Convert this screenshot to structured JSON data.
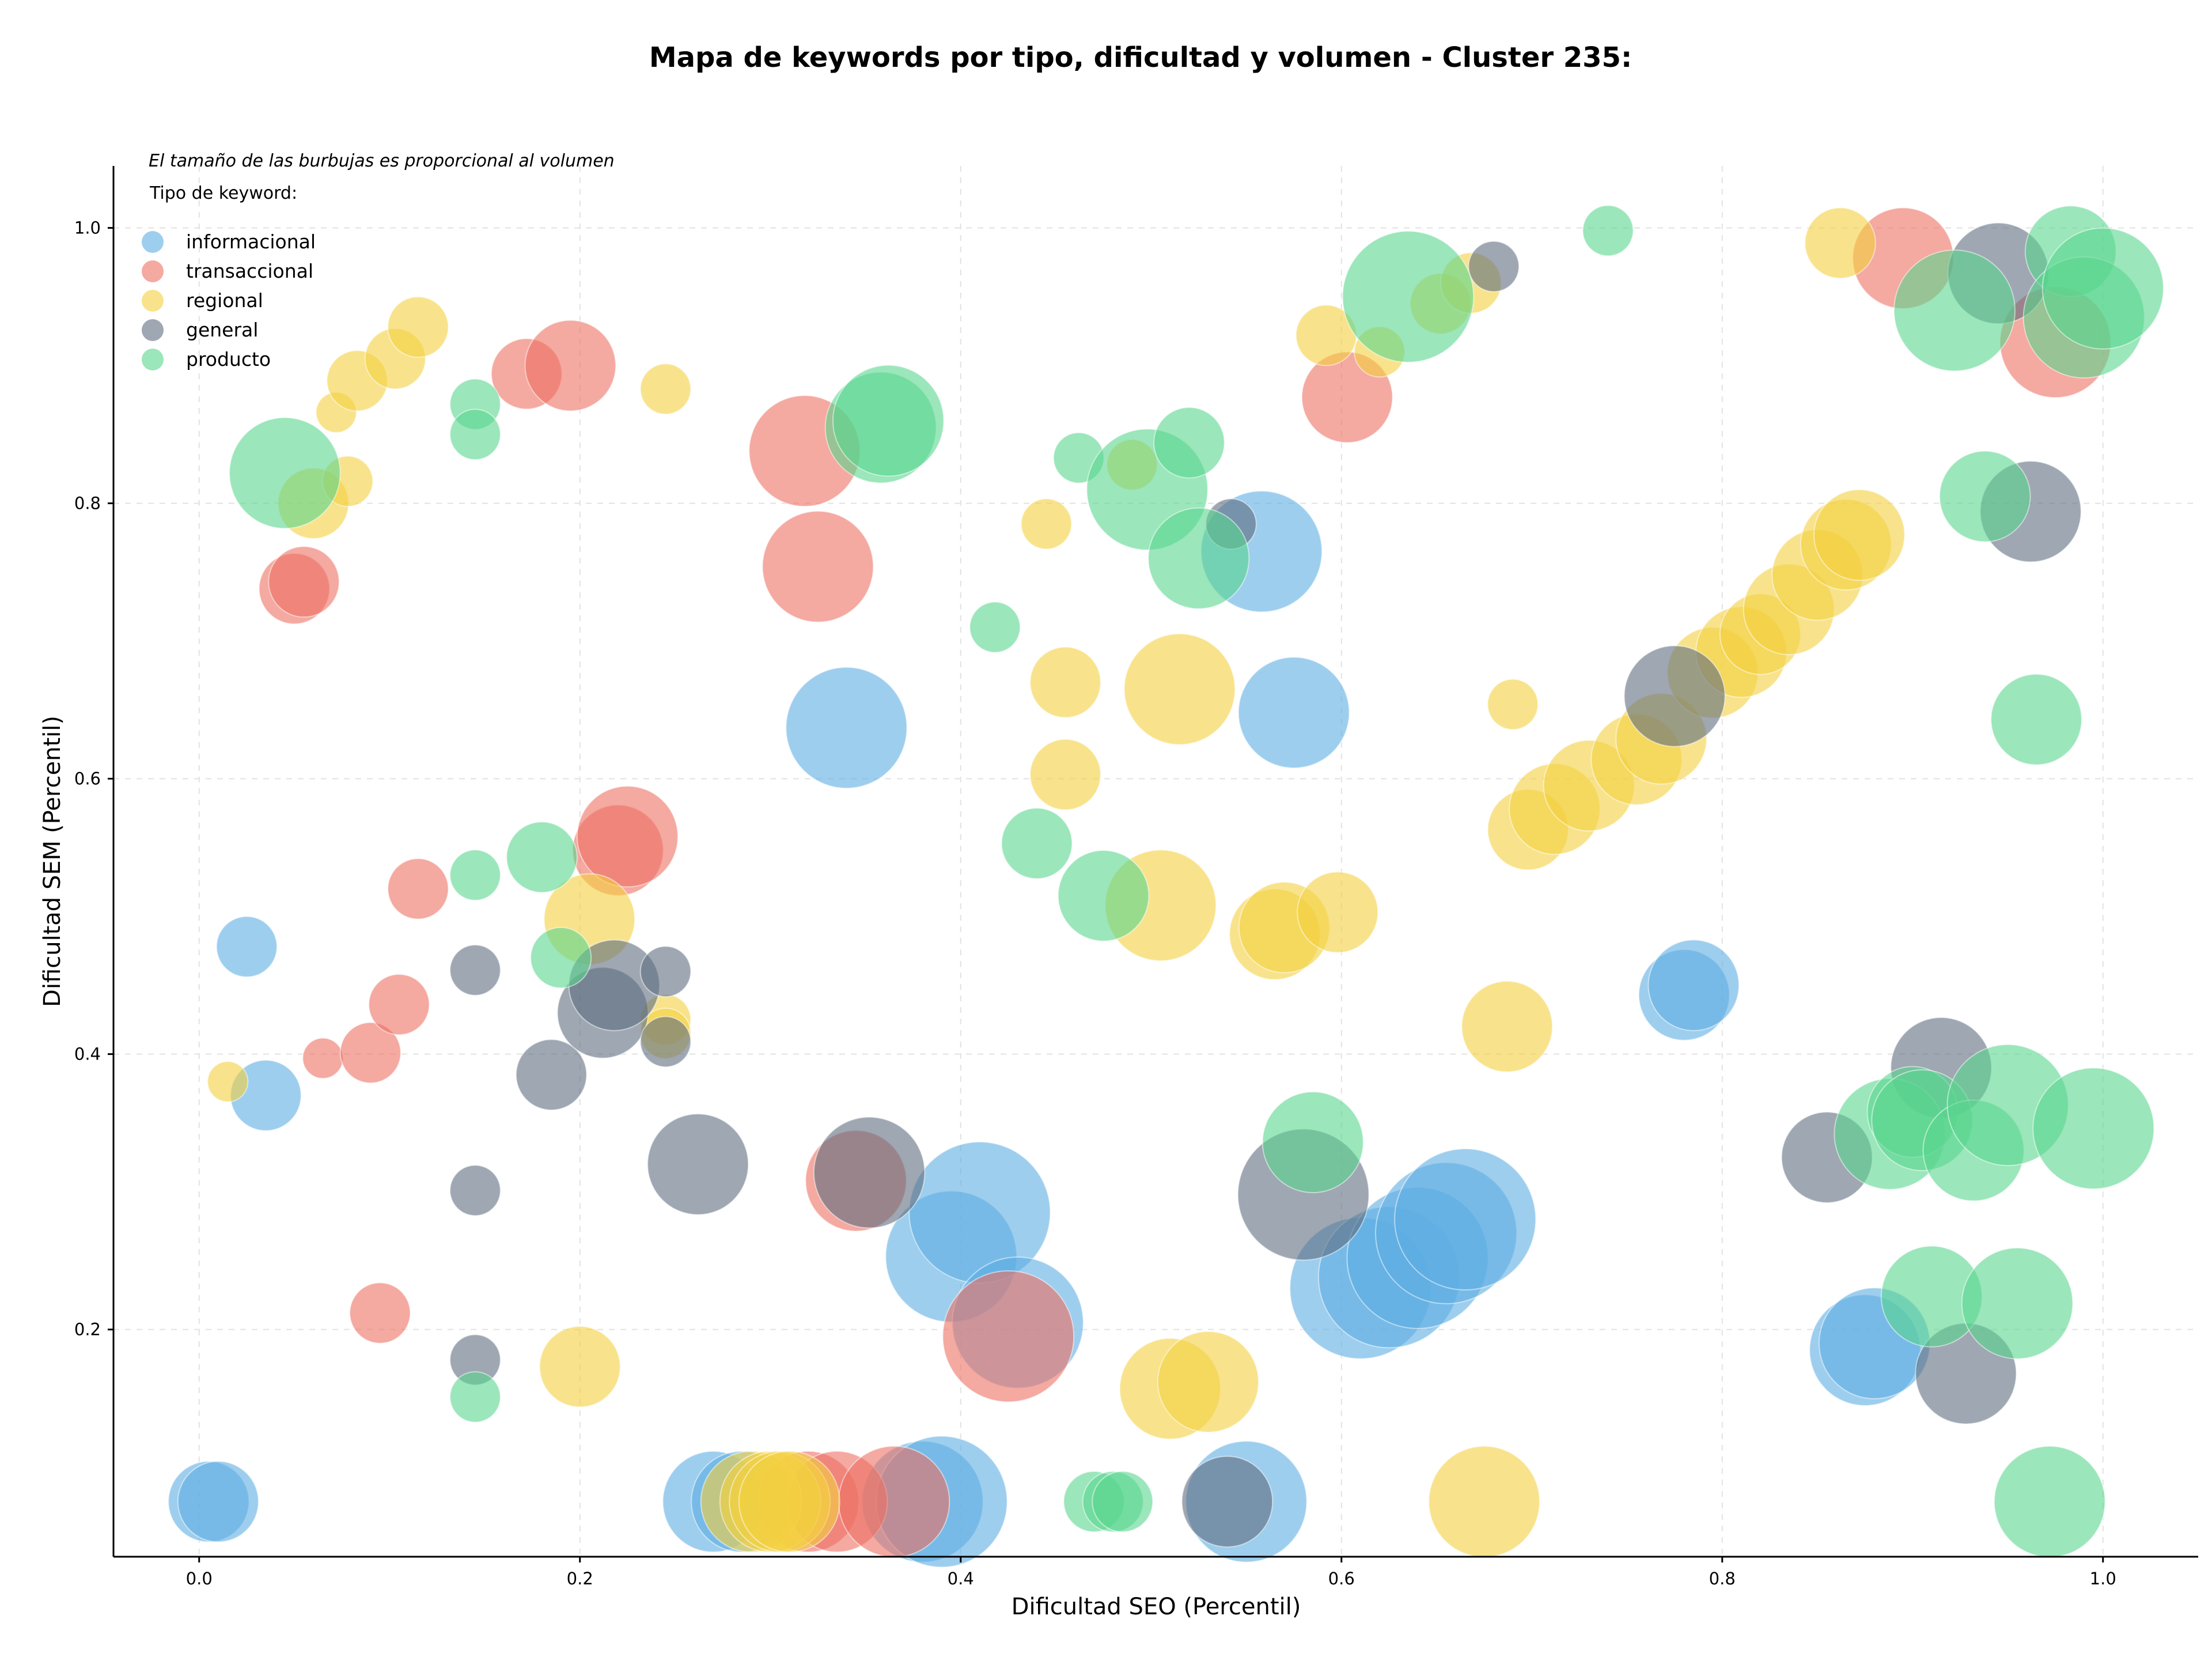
{
  "chart_data": {
    "type": "scatter",
    "title": "Mapa de keywords por tipo, dificultad y volumen - Cluster 235:",
    "xlabel": "Dificultad SEO (Percentil)",
    "ylabel": "Dificultad SEM (Percentil)",
    "xlim": [
      -0.045,
      1.05
    ],
    "ylim": [
      0.035,
      1.045
    ],
    "xticks": [
      0.0,
      0.2,
      0.4,
      0.6,
      0.8,
      1.0
    ],
    "xtick_labels": [
      "0.0",
      "0.2",
      "0.4",
      "0.6",
      "0.8",
      "1.0"
    ],
    "yticks": [
      0.2,
      0.4,
      0.6,
      0.8,
      1.0
    ],
    "ytick_labels": [
      "0.2",
      "0.4",
      "0.6",
      "0.8",
      "1.0"
    ],
    "grid": true,
    "annotation": "El tamaño de las burbujas es proporcional al volumen",
    "legend": {
      "title": "Tipo de keyword:",
      "placement": "top-left"
    },
    "series": [
      {
        "name": "informacional",
        "color": "#5DADE2",
        "points": [
          [
            0.005,
            0.075,
            4
          ],
          [
            0.01,
            0.075,
            4
          ],
          [
            0.025,
            0.478,
            3
          ],
          [
            0.035,
            0.37,
            3.5
          ],
          [
            0.34,
            0.637,
            6
          ],
          [
            0.558,
            0.765,
            6
          ],
          [
            0.575,
            0.648,
            5.5
          ],
          [
            0.27,
            0.075,
            5
          ],
          [
            0.285,
            0.075,
            5
          ],
          [
            0.38,
            0.075,
            6
          ],
          [
            0.39,
            0.075,
            6.5
          ],
          [
            0.395,
            0.253,
            6.5
          ],
          [
            0.41,
            0.285,
            7
          ],
          [
            0.43,
            0.205,
            6.5
          ],
          [
            0.55,
            0.075,
            6
          ],
          [
            0.61,
            0.23,
            7
          ],
          [
            0.625,
            0.238,
            7
          ],
          [
            0.64,
            0.252,
            7
          ],
          [
            0.655,
            0.27,
            7
          ],
          [
            0.665,
            0.28,
            7
          ],
          [
            0.78,
            0.443,
            4.5
          ],
          [
            0.785,
            0.45,
            4.5
          ],
          [
            0.875,
            0.185,
            5.5
          ],
          [
            0.88,
            0.19,
            5.5
          ]
        ]
      },
      {
        "name": "transaccional",
        "color": "#EC7063",
        "points": [
          [
            0.05,
            0.738,
            3.5
          ],
          [
            0.055,
            0.743,
            3.5
          ],
          [
            0.065,
            0.397,
            2
          ],
          [
            0.09,
            0.401,
            3
          ],
          [
            0.095,
            0.212,
            3
          ],
          [
            0.105,
            0.436,
            3
          ],
          [
            0.115,
            0.52,
            3
          ],
          [
            0.172,
            0.894,
            3.5
          ],
          [
            0.195,
            0.9,
            4.5
          ],
          [
            0.22,
            0.548,
            4.5
          ],
          [
            0.225,
            0.558,
            5
          ],
          [
            0.318,
            0.838,
            5.5
          ],
          [
            0.325,
            0.754,
            5.5
          ],
          [
            0.32,
            0.075,
            5
          ],
          [
            0.335,
            0.075,
            5
          ],
          [
            0.345,
            0.308,
            5
          ],
          [
            0.365,
            0.075,
            5.5
          ],
          [
            0.425,
            0.195,
            6.5
          ],
          [
            0.603,
            0.877,
            4.5
          ],
          [
            0.895,
            0.978,
            5
          ],
          [
            0.975,
            0.917,
            5.5
          ]
        ]
      },
      {
        "name": "regional",
        "color": "#F4D03F",
        "points": [
          [
            0.015,
            0.38,
            2
          ],
          [
            0.06,
            0.8,
            3.5
          ],
          [
            0.072,
            0.866,
            2
          ],
          [
            0.078,
            0.816,
            2.5
          ],
          [
            0.083,
            0.889,
            3
          ],
          [
            0.103,
            0.905,
            3
          ],
          [
            0.115,
            0.928,
            3
          ],
          [
            0.2,
            0.173,
            4
          ],
          [
            0.205,
            0.498,
            4.5
          ],
          [
            0.245,
            0.883,
            2.5
          ],
          [
            0.245,
            0.425,
            2.5
          ],
          [
            0.245,
            0.415,
            2.5
          ],
          [
            0.29,
            0.075,
            5
          ],
          [
            0.3,
            0.075,
            5
          ],
          [
            0.305,
            0.075,
            5
          ],
          [
            0.31,
            0.075,
            5
          ],
          [
            0.445,
            0.785,
            2.5
          ],
          [
            0.455,
            0.67,
            3.5
          ],
          [
            0.455,
            0.603,
            3.5
          ],
          [
            0.49,
            0.828,
            2.5
          ],
          [
            0.505,
            0.508,
            5.5
          ],
          [
            0.51,
            0.157,
            5
          ],
          [
            0.515,
            0.665,
            5.5
          ],
          [
            0.53,
            0.162,
            5
          ],
          [
            0.565,
            0.487,
            4.5
          ],
          [
            0.57,
            0.492,
            4.5
          ],
          [
            0.598,
            0.503,
            4
          ],
          [
            0.592,
            0.922,
            3
          ],
          [
            0.62,
            0.91,
            2.5
          ],
          [
            0.652,
            0.945,
            3
          ],
          [
            0.668,
            0.96,
            3
          ],
          [
            0.675,
            0.075,
            5.5
          ],
          [
            0.687,
            0.42,
            4.5
          ],
          [
            0.69,
            0.654,
            2.5
          ],
          [
            0.698,
            0.563,
            4
          ],
          [
            0.712,
            0.578,
            4.5
          ],
          [
            0.73,
            0.595,
            4.5
          ],
          [
            0.755,
            0.614,
            4.5
          ],
          [
            0.768,
            0.629,
            4.5
          ],
          [
            0.795,
            0.677,
            4.5
          ],
          [
            0.81,
            0.692,
            4.5
          ],
          [
            0.82,
            0.705,
            4
          ],
          [
            0.835,
            0.723,
            4.5
          ],
          [
            0.85,
            0.748,
            4.5
          ],
          [
            0.862,
            0.989,
            3.5
          ],
          [
            0.865,
            0.77,
            4.5
          ],
          [
            0.872,
            0.777,
            4.5
          ]
        ]
      },
      {
        "name": "general",
        "color": "#5D6D7E",
        "points": [
          [
            0.145,
            0.461,
            2.5
          ],
          [
            0.145,
            0.301,
            2.5
          ],
          [
            0.145,
            0.178,
            2.5
          ],
          [
            0.185,
            0.385,
            3.5
          ],
          [
            0.212,
            0.43,
            4.5
          ],
          [
            0.218,
            0.45,
            4.5
          ],
          [
            0.245,
            0.46,
            2.5
          ],
          [
            0.245,
            0.409,
            2.5
          ],
          [
            0.262,
            0.32,
            5
          ],
          [
            0.352,
            0.314,
            5.5
          ],
          [
            0.54,
            0.075,
            4.5
          ],
          [
            0.542,
            0.785,
            2.5
          ],
          [
            0.58,
            0.298,
            6.5
          ],
          [
            0.68,
            0.972,
            2.5
          ],
          [
            0.775,
            0.66,
            5
          ],
          [
            0.855,
            0.325,
            4.5
          ],
          [
            0.915,
            0.39,
            5
          ],
          [
            0.928,
            0.168,
            5
          ],
          [
            0.945,
            0.967,
            5
          ],
          [
            0.962,
            0.794,
            5
          ]
        ]
      },
      {
        "name": "producto",
        "color": "#58D68D",
        "points": [
          [
            0.045,
            0.822,
            5.5
          ],
          [
            0.145,
            0.872,
            2.5
          ],
          [
            0.145,
            0.85,
            2.5
          ],
          [
            0.145,
            0.53,
            2.5
          ],
          [
            0.145,
            0.151,
            2.5
          ],
          [
            0.18,
            0.543,
            3.5
          ],
          [
            0.19,
            0.47,
            3
          ],
          [
            0.358,
            0.855,
            5.5
          ],
          [
            0.362,
            0.86,
            5.5
          ],
          [
            0.418,
            0.71,
            2.5
          ],
          [
            0.44,
            0.553,
            3.5
          ],
          [
            0.462,
            0.833,
            2.5
          ],
          [
            0.47,
            0.075,
            3
          ],
          [
            0.48,
            0.075,
            3
          ],
          [
            0.485,
            0.075,
            3
          ],
          [
            0.475,
            0.515,
            4.5
          ],
          [
            0.498,
            0.81,
            6
          ],
          [
            0.52,
            0.844,
            3.5
          ],
          [
            0.525,
            0.76,
            5
          ],
          [
            0.585,
            0.336,
            5
          ],
          [
            0.635,
            0.95,
            6.5
          ],
          [
            0.74,
            0.998,
            2.5
          ],
          [
            0.888,
            0.342,
            5.5
          ],
          [
            0.9,
            0.358,
            4.5
          ],
          [
            0.905,
            0.352,
            5
          ],
          [
            0.91,
            0.224,
            5
          ],
          [
            0.922,
            0.94,
            6
          ],
          [
            0.932,
            0.33,
            5
          ],
          [
            0.938,
            0.805,
            4.5
          ],
          [
            0.95,
            0.363,
            6
          ],
          [
            0.955,
            0.219,
            5.5
          ],
          [
            0.965,
            0.643,
            4.5
          ],
          [
            0.972,
            0.075,
            5.5
          ],
          [
            0.983,
            0.983,
            4.5
          ],
          [
            0.99,
            0.935,
            6
          ],
          [
            0.995,
            0.346,
            6
          ],
          [
            1.0,
            0.956,
            6
          ]
        ]
      }
    ]
  }
}
